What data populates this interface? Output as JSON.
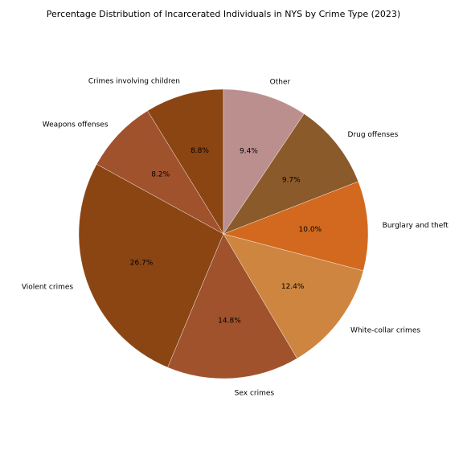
{
  "chart_data": {
    "type": "pie",
    "title": "Percentage Distribution of Incarcerated Individuals in NYS by Crime Type (2023)",
    "start_angle_deg": 90,
    "direction": "counterclockwise",
    "slices": [
      {
        "label": "Crimes involving children",
        "value": 8.8,
        "pct_text": "8.8%",
        "color": "#8b4513"
      },
      {
        "label": "Weapons offenses",
        "value": 8.2,
        "pct_text": "8.2%",
        "color": "#a0522d"
      },
      {
        "label": "Violent crimes",
        "value": 26.7,
        "pct_text": "26.7%",
        "color": "#8b4513"
      },
      {
        "label": "Sex crimes",
        "value": 14.8,
        "pct_text": "14.8%",
        "color": "#a0522d"
      },
      {
        "label": "White-collar crimes",
        "value": 12.4,
        "pct_text": "12.4%",
        "color": "#cd853f"
      },
      {
        "label": "Burglary and theft",
        "value": 10.0,
        "pct_text": "10.0%",
        "color": "#d2691e"
      },
      {
        "label": "Drug offenses",
        "value": 9.7,
        "pct_text": "9.7%",
        "color": "#8b5a2b"
      },
      {
        "label": "Other",
        "value": 9.4,
        "pct_text": "9.4%",
        "color": "#bc8f8f"
      }
    ]
  }
}
